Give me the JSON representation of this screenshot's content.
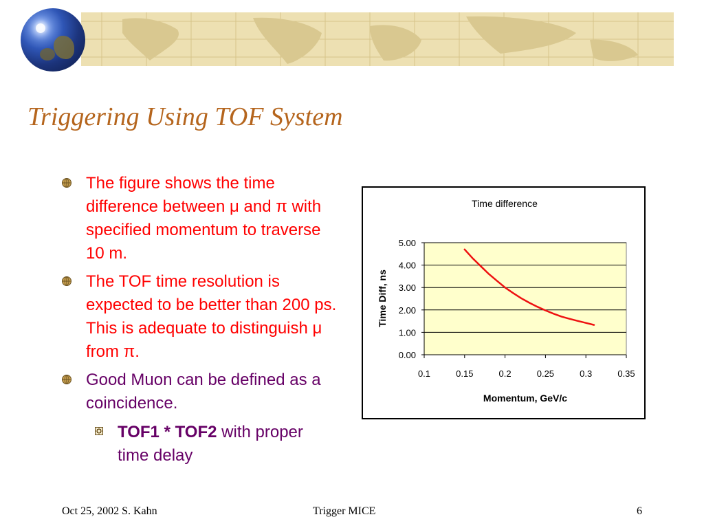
{
  "title": "Triggering Using TOF System",
  "colors": {
    "title": "#b5651d",
    "bullet_red": "#ff0000",
    "bullet_purple": "#660066",
    "banner": "#ede0b2",
    "plot_bg": "#ffffcc",
    "series": "#ee1111"
  },
  "bullets": [
    {
      "text": "The figure shows the time difference between μ and π with specified momentum to traverse 10 m.",
      "icon": "globe-bullet-icon"
    },
    {
      "text": "The TOF time resolution is expected to be better than 200 ps.  This is adequate to distinguish μ from π.",
      "icon": "globe-bullet-icon"
    },
    {
      "text": "Good Muon can be defined as a coincidence.",
      "icon": "globe-bullet-icon"
    }
  ],
  "sub_bullet": {
    "bold": "TOF1 * TOF2",
    "rest": " with proper time delay",
    "icon": "square-bullet-icon"
  },
  "chart_data": {
    "type": "line",
    "title": "Time difference",
    "xlabel": "Momentum, GeV/c",
    "ylabel": "Time Diff, ns",
    "xlim": [
      0.1,
      0.35
    ],
    "ylim": [
      0,
      5
    ],
    "x_ticks": [
      "0.1",
      "0.15",
      "0.2",
      "0.25",
      "0.3",
      "0.35"
    ],
    "y_ticks": [
      "0.00",
      "1.00",
      "2.00",
      "3.00",
      "4.00",
      "5.00"
    ],
    "grid": "horizontal",
    "series": [
      {
        "x": [
          0.15,
          0.16,
          0.17,
          0.18,
          0.19,
          0.2,
          0.21,
          0.22,
          0.23,
          0.24,
          0.25,
          0.26,
          0.27,
          0.28,
          0.29,
          0.3,
          0.31
        ],
        "y": [
          4.7,
          4.3,
          3.95,
          3.6,
          3.3,
          3.0,
          2.75,
          2.52,
          2.32,
          2.14,
          1.98,
          1.83,
          1.7,
          1.6,
          1.51,
          1.42,
          1.33
        ]
      }
    ]
  },
  "footer": {
    "left": "Oct 25, 2002 S. Kahn",
    "center": "Trigger MICE",
    "right": "6"
  }
}
